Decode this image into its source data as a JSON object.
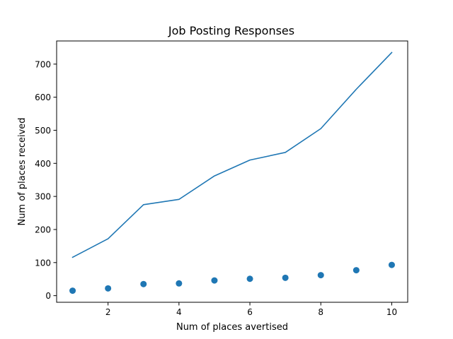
{
  "chart_data": {
    "type": "line",
    "title": "Job Posting Responses",
    "xlabel": "Num of places avertised",
    "ylabel": "Num of places received",
    "xlim": [
      0.55,
      10.45
    ],
    "ylim": [
      -20,
      770
    ],
    "xticks": [
      2,
      4,
      6,
      8,
      10
    ],
    "yticks": [
      0,
      100,
      200,
      300,
      400,
      500,
      600,
      700
    ],
    "grid": false,
    "series": [
      {
        "kind": "line",
        "x": [
          1,
          2,
          3,
          4,
          5,
          6,
          7,
          8,
          9,
          10
        ],
        "y": [
          116,
          172,
          275,
          291,
          362,
          410,
          433,
          505,
          624,
          735
        ]
      },
      {
        "kind": "scatter",
        "x": [
          1,
          2,
          3,
          4,
          5,
          6,
          7,
          8,
          9,
          10
        ],
        "y": [
          15,
          22,
          35,
          37,
          46,
          51,
          54,
          62,
          77,
          93
        ]
      }
    ],
    "colors": {
      "series": "#1f77b4",
      "axes": "#000000"
    }
  }
}
